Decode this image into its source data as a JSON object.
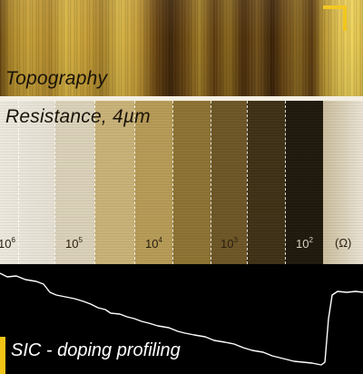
{
  "topography": {
    "label": "Topography"
  },
  "resistance": {
    "label": "Resistance, 4µm",
    "decades": [
      {
        "base": "10",
        "exp": "6"
      },
      {
        "base": "10",
        "exp": "5"
      },
      {
        "base": "10",
        "exp": "4"
      },
      {
        "base": "10",
        "exp": "3"
      },
      {
        "base": "10",
        "exp": "2"
      }
    ],
    "unit": "(Ω)"
  },
  "profile": {
    "label": "SIC - doping profiling"
  },
  "colors": {
    "accent": "#f2c417",
    "profile_line": "#ffffff",
    "background": "#000000"
  }
}
